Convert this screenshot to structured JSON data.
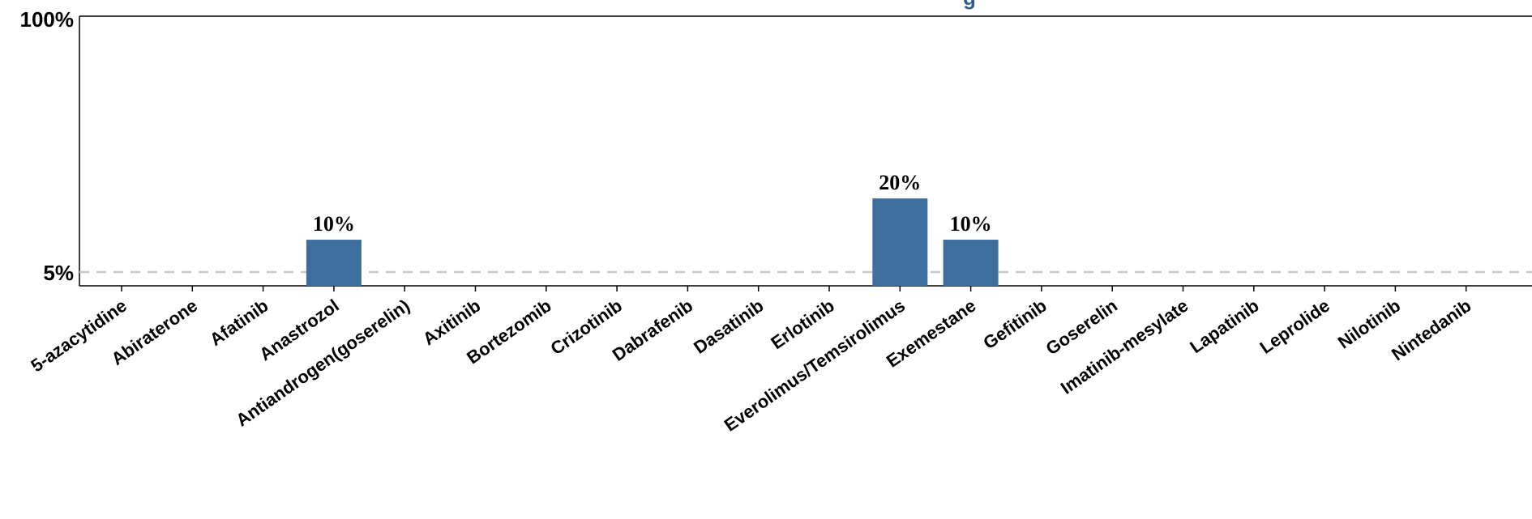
{
  "chart_data": {
    "type": "bar",
    "categories": [
      "5-azacytidine",
      "Abiraterone",
      "Afatinib",
      "Anastrozol",
      "Antiandrogen(goserelin)",
      "Axitinib",
      "Bortezomib",
      "Crizotinib",
      "Dabrafenib",
      "Dasatinib",
      "Erlotinib",
      "Everolimus/Temsirolimus",
      "Exemestane",
      "Gefitinib",
      "Goserelin",
      "Imatinib-mesylate",
      "Lapatinib",
      "Leprolide",
      "Nilotinib",
      "Nintedanib"
    ],
    "values": [
      0,
      0,
      0,
      10,
      0,
      0,
      0,
      0,
      0,
      0,
      0,
      20,
      10,
      0,
      0,
      0,
      0,
      0,
      0,
      0
    ],
    "data_labels": [
      "",
      "",
      "",
      "10%",
      "",
      "",
      "",
      "",
      "",
      "",
      "",
      "20%",
      "10%",
      "",
      "",
      "",
      "",
      "",
      "",
      ""
    ],
    "y_tick_labels": [
      "100%",
      "5%"
    ],
    "y_ticks": [
      100,
      5
    ],
    "ylim": [
      0,
      100
    ],
    "y_scale": "broken",
    "reference_line": {
      "value": 5,
      "style": "dashed"
    },
    "bar_color": "#3e6e9e",
    "grid": false,
    "legend": "none"
  }
}
